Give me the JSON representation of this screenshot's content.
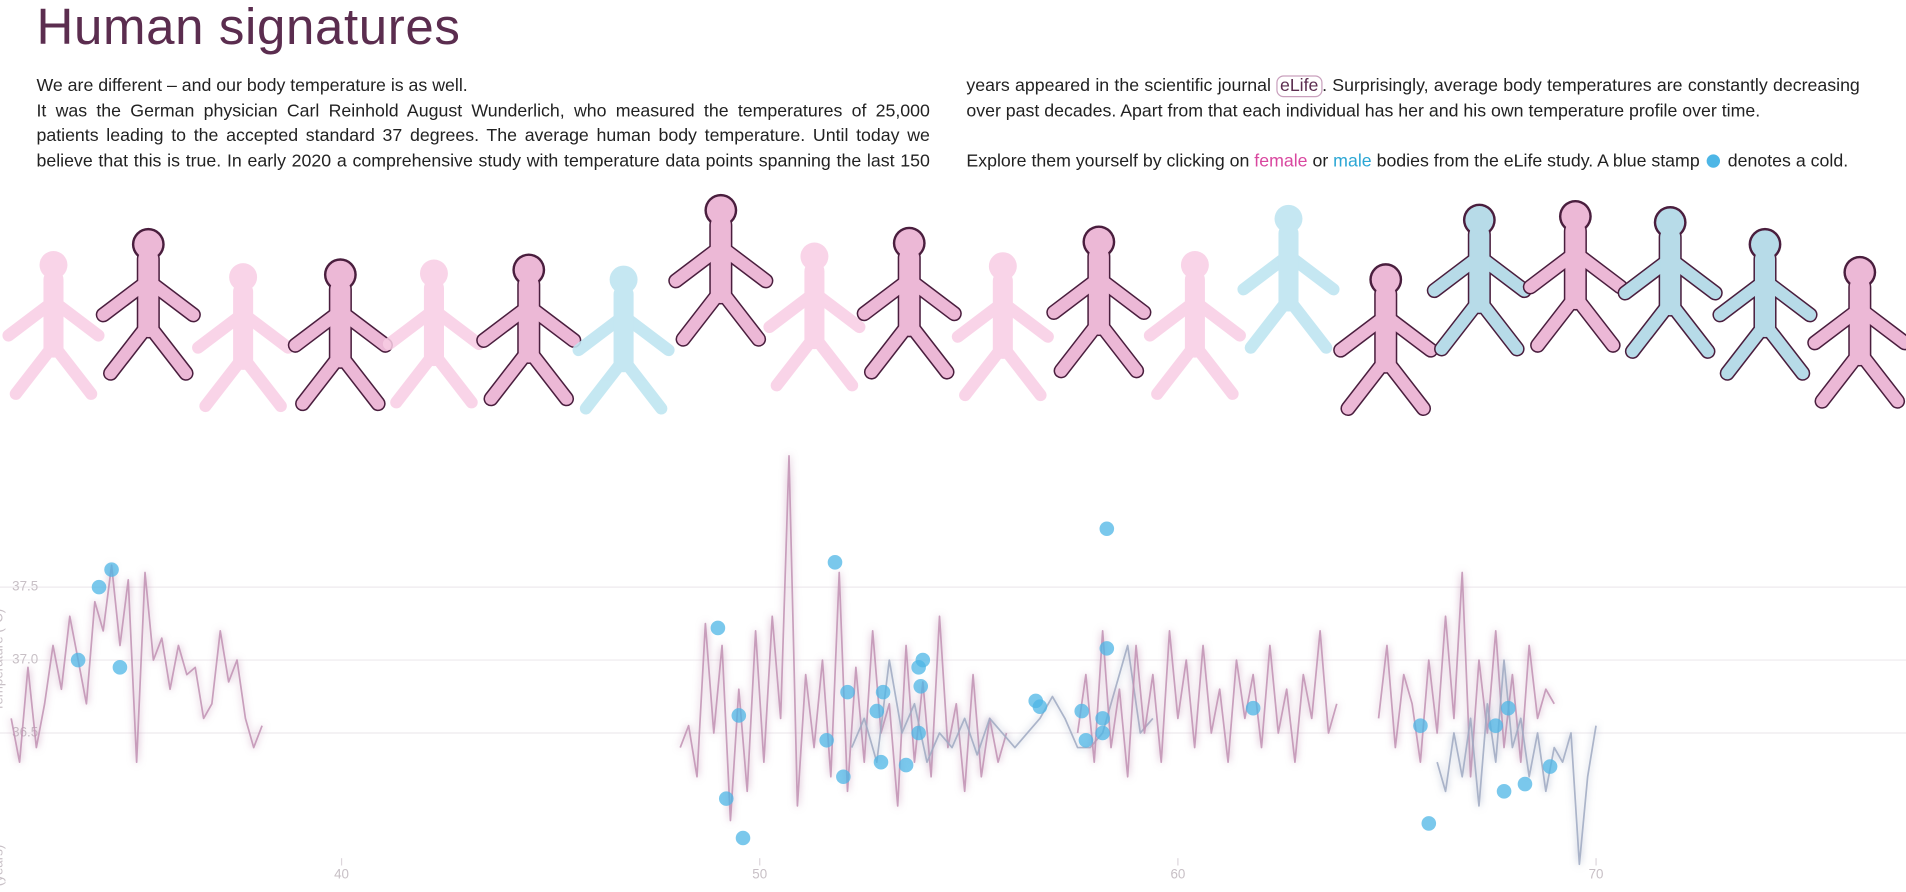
{
  "header": {
    "title": "Human signatures"
  },
  "intro": {
    "p1": "We are different – and our body temperature is as well.",
    "p2": [
      "It was the German physician Carl Reinhold August Wunderlich, who measured the temperatures of 25,000 patients leading to the accepted standard 37 degrees. The average human body temperature. Until today we believe that this is true. In early 2020 a comprehensive study with temperature data points spanning the last 150 years appeared in the scientific journal ",
      "eLife",
      ". Surprisingly, average body temperatures are constantly decreasing over past decades. Apart from that each individual has her and his own temperature profile over time."
    ],
    "p3": [
      "Explore them yourself by clicking on ",
      "female",
      " or ",
      "male",
      " bodies from the eLife study. A blue stamp ",
      " denotes a cold."
    ]
  },
  "chart_data": {
    "type": "line",
    "ylabel": "Temperature (°C)",
    "xlabel": "(years)",
    "xlim": [
      31.8,
      77.4
    ],
    "ylim": [
      35.4,
      38.5
    ],
    "xticks": [
      40,
      50,
      60,
      70
    ],
    "yticks": [
      36.5,
      {
        "value": 37,
        "label": "37.0"
      },
      37.5
    ],
    "grid": true,
    "series": [
      {
        "color": "#c191b3",
        "x": [
          32.1,
          32.3,
          32.5,
          32.7,
          32.9,
          33.1,
          33.3,
          33.5,
          33.7,
          33.9,
          34.1,
          34.3,
          34.5,
          34.7,
          34.9,
          35.1,
          35.3,
          35.5,
          35.7,
          35.9,
          36.1,
          36.3,
          36.5,
          36.7,
          36.9,
          37.1,
          37.3,
          37.5,
          37.7,
          37.9,
          38.1
        ],
        "values": [
          36.6,
          36.3,
          36.95,
          36.4,
          36.7,
          37.1,
          36.8,
          37.3,
          37.0,
          36.7,
          37.4,
          37.2,
          37.65,
          37.1,
          37.55,
          36.3,
          37.6,
          37.0,
          37.15,
          36.8,
          37.1,
          36.9,
          36.95,
          36.6,
          36.7,
          37.2,
          36.85,
          37.0,
          36.6,
          36.4,
          36.55
        ]
      },
      {
        "color": "#c191b3",
        "x": [
          48.1,
          48.3,
          48.5,
          48.7,
          48.9,
          49.1,
          49.3,
          49.5,
          49.7,
          49.9,
          50.1,
          50.3,
          50.5,
          50.7,
          50.9,
          51.1,
          51.3,
          51.5,
          51.7,
          51.9,
          52.1,
          52.3,
          52.5,
          52.7,
          52.9,
          53.1,
          53.3,
          53.5,
          53.7,
          53.9,
          54.1,
          54.3,
          54.5,
          54.7,
          54.9,
          55.1,
          55.3,
          55.5,
          55.7,
          55.9
        ],
        "values": [
          36.4,
          36.55,
          36.2,
          37.25,
          36.5,
          37.1,
          35.9,
          36.8,
          36.1,
          37.2,
          36.3,
          37.3,
          36.6,
          38.4,
          36.0,
          36.9,
          36.4,
          37.0,
          36.2,
          37.6,
          36.1,
          36.95,
          36.3,
          37.2,
          36.5,
          36.7,
          36.0,
          37.1,
          36.3,
          36.85,
          36.2,
          37.3,
          36.4,
          36.7,
          36.1,
          36.9,
          36.2,
          36.6,
          36.3,
          36.5
        ]
      },
      {
        "color": "#9fa9c2",
        "x": [
          52.2,
          52.5,
          52.8,
          53.1,
          53.4,
          53.7,
          54.0,
          54.3,
          54.6,
          54.9,
          55.2,
          55.5,
          55.8,
          56.1,
          56.4,
          56.7,
          57.0,
          57.3,
          57.6,
          57.9,
          58.2,
          58.5,
          58.8,
          59.1,
          59.4
        ],
        "values": [
          36.4,
          36.6,
          36.3,
          37.0,
          36.5,
          36.7,
          36.3,
          36.5,
          36.4,
          36.6,
          36.35,
          36.6,
          36.5,
          36.4,
          36.5,
          36.6,
          36.75,
          36.6,
          36.4,
          36.4,
          36.5,
          36.8,
          37.1,
          36.5,
          36.6
        ]
      },
      {
        "color": "#c191b3",
        "x": [
          57.6,
          57.8,
          58.0,
          58.2,
          58.4,
          58.6,
          58.8,
          59.0,
          59.2,
          59.4,
          59.6,
          59.8,
          60.0,
          60.2,
          60.4,
          60.6,
          60.8,
          61.0,
          61.2,
          61.4,
          61.6,
          61.8,
          62.0,
          62.2,
          62.4,
          62.6,
          62.8,
          63.0,
          63.2,
          63.4,
          63.6,
          63.8
        ],
        "values": [
          36.5,
          36.9,
          36.3,
          37.2,
          36.4,
          36.8,
          36.2,
          37.1,
          36.5,
          36.9,
          36.3,
          37.2,
          36.6,
          37.0,
          36.4,
          37.1,
          36.5,
          36.8,
          36.3,
          37.0,
          36.6,
          36.9,
          36.4,
          37.1,
          36.5,
          36.8,
          36.3,
          36.9,
          36.6,
          37.2,
          36.5,
          36.7
        ]
      },
      {
        "color": "#c191b3",
        "x": [
          64.8,
          65.0,
          65.2,
          65.4,
          65.6,
          65.8,
          66.0,
          66.2,
          66.4,
          66.6,
          66.8,
          67.0,
          67.2,
          67.4,
          67.6,
          67.8,
          68.0,
          68.2,
          68.4,
          68.6,
          68.8,
          69.0
        ],
        "values": [
          36.6,
          37.1,
          36.4,
          36.9,
          36.7,
          36.3,
          37.0,
          36.5,
          37.3,
          36.6,
          37.6,
          36.2,
          37.0,
          36.5,
          37.2,
          36.4,
          36.9,
          36.3,
          37.1,
          36.6,
          36.8,
          36.7
        ]
      },
      {
        "color": "#9fa9c2",
        "x": [
          66.2,
          66.4,
          66.6,
          66.8,
          67.0,
          67.2,
          67.4,
          67.6,
          67.8,
          68.0,
          68.2,
          68.4,
          68.6,
          68.8,
          69.0,
          69.2,
          69.4,
          69.6,
          69.8,
          70.0
        ],
        "values": [
          36.3,
          36.1,
          36.5,
          36.2,
          36.6,
          36.0,
          36.7,
          36.3,
          37.0,
          36.4,
          36.6,
          36.2,
          36.5,
          36.1,
          36.4,
          36.3,
          36.5,
          35.6,
          36.2,
          36.55
        ]
      }
    ],
    "colds": {
      "color": "#4db6e6",
      "x": [
        33.7,
        34.2,
        34.5,
        34.7,
        49.0,
        49.2,
        49.5,
        49.6,
        51.6,
        51.8,
        52.0,
        52.1,
        52.8,
        52.9,
        52.95,
        53.5,
        53.8,
        53.85,
        53.8,
        53.9,
        56.6,
        56.7,
        57.7,
        57.8,
        58.2,
        58.3,
        58.3,
        58.2,
        61.8,
        65.8,
        66.0,
        67.6,
        67.8,
        67.9,
        68.3,
        68.9
      ],
      "values": [
        37.0,
        37.5,
        37.62,
        36.95,
        37.22,
        36.05,
        36.62,
        35.78,
        36.45,
        37.67,
        36.2,
        36.78,
        36.65,
        36.3,
        36.78,
        36.28,
        36.5,
        36.82,
        36.95,
        37.0,
        36.72,
        36.68,
        36.65,
        36.45,
        36.5,
        37.08,
        37.9,
        36.6,
        36.67,
        36.55,
        35.88,
        36.55,
        36.1,
        36.67,
        36.15,
        36.27
      ]
    }
  }
}
